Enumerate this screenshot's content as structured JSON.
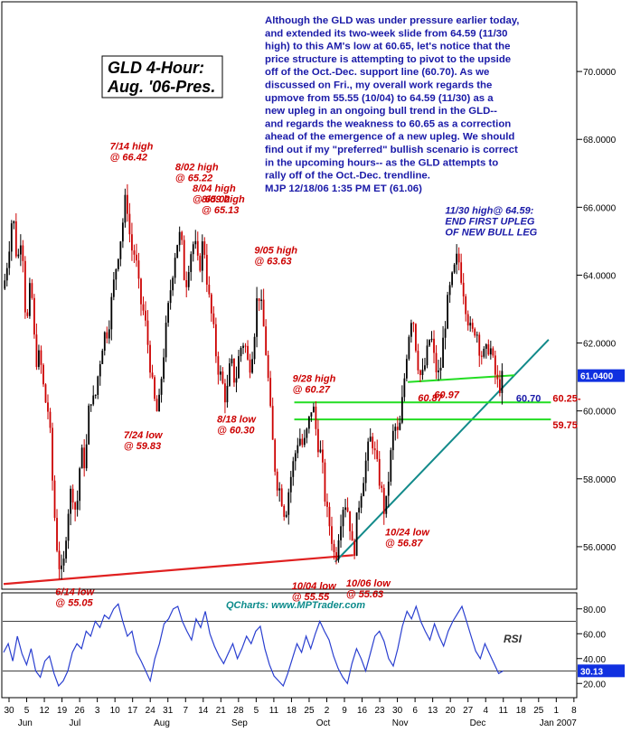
{
  "title_lines": [
    "GLD 4-Hour:",
    "Aug. '06-Pres."
  ],
  "commentary": [
    "Although the GLD was under pressure earlier today,",
    "and extended its two-week slide from 64.59 (11/30",
    "high) to this AM's low at 60.65, let's notice that the",
    "price structure is attempting to pivot to the upside",
    "off of the Oct.-Dec. support line (60.70). As we",
    "discussed on Fri., my overall work regards the",
    "upmove from 55.55 (10/04) to 64.59 (11/30) as a",
    "new upleg in an ongoing bull trend in the GLD--",
    "and regards the weakness to 60.65 as a correction",
    "ahead of the emergence of a new upleg. We should",
    "find out if my \"preferred\" bullish scenario is correct",
    "in the upcoming hours-- as the GLD attempts to",
    "rally off of the Oct.-Dec. trendline.",
    "MJP 12/18/06 1:35 PM ET   (61.06)"
  ],
  "credit": "QCharts: www.MPTrader.com",
  "rsi_label": "RSI",
  "colors": {
    "annotation": "#cc0000",
    "annotation_blue": "#1a1aa8",
    "support_line": "#e02020",
    "trendline": "#128a8a",
    "level_line": "#22dd22",
    "rsi_line": "#2a3fd0",
    "price_tag": "#1030e0",
    "rsi_tag": "#1030e0",
    "candle_up": "#000000",
    "candle_down": "#cc0000"
  },
  "chart_data": {
    "type": "candlestick",
    "symbol": "GLD",
    "interval": "4-Hour",
    "ylim": [
      54.8,
      72.0
    ],
    "y_ticks": [
      "70.0000",
      "68.0000",
      "66.0000",
      "64.0000",
      "62.0000",
      "60.0000",
      "58.0000",
      "56.0000"
    ],
    "last_price_tag": "61.0400",
    "x_ticks": [
      "30",
      "5",
      "12",
      "19",
      "26",
      "3",
      "10",
      "17",
      "24",
      "31",
      "7",
      "14",
      "21",
      "28",
      "5",
      "11",
      "18",
      "25",
      "2",
      "9",
      "16",
      "23",
      "30",
      "6",
      "13",
      "20",
      "27",
      "4",
      "11",
      "18",
      "25",
      "1",
      "8"
    ],
    "month_labels": [
      "Jun",
      "Jul",
      "Aug",
      "Sep",
      "Oct",
      "Nov",
      "Dec",
      "Jan 2007"
    ],
    "price_path": [
      [
        0,
        63.6
      ],
      [
        2,
        64.6
      ],
      [
        4,
        65.9
      ],
      [
        6,
        64.3
      ],
      [
        8,
        65.4
      ],
      [
        10,
        62.3
      ],
      [
        12,
        63.9
      ],
      [
        14,
        61.5
      ],
      [
        16,
        61.6
      ],
      [
        18,
        60.4
      ],
      [
        20,
        59.9
      ],
      [
        22,
        57.3
      ],
      [
        24,
        55.6
      ],
      [
        26,
        55.05
      ],
      [
        28,
        56.9
      ],
      [
        30,
        57.8
      ],
      [
        32,
        56.9
      ],
      [
        34,
        58.8
      ],
      [
        36,
        58.4
      ],
      [
        38,
        60.5
      ],
      [
        40,
        60.2
      ],
      [
        42,
        61.3
      ],
      [
        44,
        62.2
      ],
      [
        46,
        62.4
      ],
      [
        48,
        63.5
      ],
      [
        50,
        64.5
      ],
      [
        52,
        65.3
      ],
      [
        54,
        66.42
      ],
      [
        56,
        64.8
      ],
      [
        58,
        64.6
      ],
      [
        60,
        63.3
      ],
      [
        62,
        62.8
      ],
      [
        64,
        61.7
      ],
      [
        66,
        60.4
      ],
      [
        68,
        59.83
      ],
      [
        70,
        61.4
      ],
      [
        72,
        62.7
      ],
      [
        74,
        63.9
      ],
      [
        76,
        64.9
      ],
      [
        78,
        65.22
      ],
      [
        80,
        63.6
      ],
      [
        82,
        64.6
      ],
      [
        84,
        65.02
      ],
      [
        86,
        64.1
      ],
      [
        88,
        65.13
      ],
      [
        90,
        63.5
      ],
      [
        92,
        62.6
      ],
      [
        94,
        61.4
      ],
      [
        96,
        60.9
      ],
      [
        98,
        60.3
      ],
      [
        100,
        61.5
      ],
      [
        102,
        60.8
      ],
      [
        104,
        61.8
      ],
      [
        106,
        62.1
      ],
      [
        108,
        61.2
      ],
      [
        110,
        62.0
      ],
      [
        112,
        63.63
      ],
      [
        114,
        62.8
      ],
      [
        116,
        61.4
      ],
      [
        118,
        59.4
      ],
      [
        120,
        58.0
      ],
      [
        122,
        57.6
      ],
      [
        124,
        56.9
      ],
      [
        126,
        57.9
      ],
      [
        128,
        58.6
      ],
      [
        130,
        59.3
      ],
      [
        132,
        58.9
      ],
      [
        134,
        59.5
      ],
      [
        136,
        60.27
      ],
      [
        138,
        59.2
      ],
      [
        140,
        58.6
      ],
      [
        142,
        57.1
      ],
      [
        144,
        56.5
      ],
      [
        146,
        55.55
      ],
      [
        148,
        56.7
      ],
      [
        150,
        57.4
      ],
      [
        152,
        57.0
      ],
      [
        154,
        55.63
      ],
      [
        156,
        57.1
      ],
      [
        158,
        57.9
      ],
      [
        160,
        58.7
      ],
      [
        162,
        59.3
      ],
      [
        164,
        58.5
      ],
      [
        166,
        57.8
      ],
      [
        168,
        56.87
      ],
      [
        170,
        58.4
      ],
      [
        172,
        59.6
      ],
      [
        174,
        59.2
      ],
      [
        176,
        60.6
      ],
      [
        178,
        62.1
      ],
      [
        180,
        63.0
      ],
      [
        182,
        61.6
      ],
      [
        184,
        60.87
      ],
      [
        186,
        61.5
      ],
      [
        188,
        62.3
      ],
      [
        190,
        61.3
      ],
      [
        192,
        60.97
      ],
      [
        194,
        62.4
      ],
      [
        196,
        63.4
      ],
      [
        198,
        64.0
      ],
      [
        200,
        64.59
      ],
      [
        202,
        63.8
      ],
      [
        204,
        62.9
      ],
      [
        206,
        62.2
      ],
      [
        208,
        62.5
      ],
      [
        210,
        61.7
      ],
      [
        212,
        61.6
      ],
      [
        214,
        62.0
      ],
      [
        216,
        61.2
      ],
      [
        218,
        60.65
      ],
      [
        220,
        61.04
      ]
    ],
    "support_line": {
      "from": [
        0,
        54.9
      ],
      "to": [
        154,
        55.75
      ],
      "label": ""
    },
    "trendline": {
      "from": [
        146,
        55.55
      ],
      "to": [
        240,
        62.1
      ],
      "value_label": "60.70"
    },
    "level_lines": [
      {
        "value": 60.25,
        "label": "60.25-"
      },
      {
        "value": 59.75,
        "label": "59.75"
      }
    ],
    "short_level_line": {
      "from": [
        178,
        60.85
      ],
      "to": [
        225,
        61.05
      ]
    },
    "annotations": [
      {
        "text_lines": [
          "6/14 low",
          "@ 55.05"
        ],
        "at": [
          26,
          55.05
        ]
      },
      {
        "text_lines": [
          "7/14 high",
          "@ 66.42"
        ],
        "at": [
          54,
          66.42
        ]
      },
      {
        "text_lines": [
          "7/24 low",
          "@ 59.83"
        ],
        "at": [
          68,
          59.83
        ]
      },
      {
        "text_lines": [
          "8/02 high",
          "@ 65.22"
        ],
        "at": [
          78,
          65.22
        ]
      },
      {
        "text_lines": [
          "8/04 high",
          "@ 65.02"
        ],
        "at": [
          84,
          65.02
        ]
      },
      {
        "text_lines": [
          "8/09 high",
          "@ 65.13"
        ],
        "at": [
          88,
          65.13
        ]
      },
      {
        "text_lines": [
          "8/18 low",
          "@ 60.30"
        ],
        "at": [
          98,
          60.3
        ]
      },
      {
        "text_lines": [
          "9/05 high",
          "@ 63.63"
        ],
        "at": [
          112,
          63.63
        ]
      },
      {
        "text_lines": [
          "9/28 high",
          "@ 60.27"
        ],
        "at": [
          136,
          60.27
        ]
      },
      {
        "text_lines": [
          "10/04 low",
          "@ 55.55"
        ],
        "at": [
          146,
          55.55
        ]
      },
      {
        "text_lines": [
          "10/06 low",
          "@ 55.63"
        ],
        "at": [
          154,
          55.63
        ]
      },
      {
        "text_lines": [
          "10/24 low",
          "@ 56.87"
        ],
        "at": [
          168,
          56.87
        ]
      },
      {
        "text_lines": [
          "60.87"
        ],
        "at": [
          184,
          60.87
        ]
      },
      {
        "text_lines": [
          "60.97"
        ],
        "at": [
          192,
          60.97
        ]
      },
      {
        "text_lines": [
          "11/30 high@ 64.59:",
          "END FIRST UPLEG",
          "OF NEW BULL LEG"
        ],
        "at": [
          200,
          64.59
        ]
      }
    ],
    "rsi": {
      "ylim": [
        10,
        90
      ],
      "y_ticks": [
        "80.00",
        "60.00",
        "40.00",
        "20.00"
      ],
      "level_lines": [
        70,
        30
      ],
      "last_value_tag": "30.13",
      "values": [
        45,
        52,
        38,
        58,
        44,
        35,
        48,
        30,
        25,
        38,
        42,
        28,
        18,
        22,
        30,
        45,
        52,
        48,
        62,
        58,
        70,
        65,
        75,
        72,
        80,
        84,
        70,
        58,
        62,
        45,
        38,
        30,
        22,
        40,
        52,
        68,
        72,
        80,
        82,
        70,
        62,
        55,
        72,
        65,
        78,
        60,
        50,
        42,
        36,
        44,
        52,
        40,
        48,
        58,
        52,
        62,
        66,
        48,
        35,
        26,
        22,
        18,
        28,
        40,
        52,
        45,
        58,
        48,
        60,
        70,
        62,
        55,
        42,
        32,
        25,
        20,
        36,
        48,
        40,
        30,
        44,
        58,
        62,
        54,
        40,
        34,
        48,
        66,
        78,
        72,
        82,
        70,
        62,
        55,
        68,
        58,
        50,
        62,
        70,
        76,
        82,
        70,
        58,
        46,
        40,
        52,
        44,
        36,
        28,
        30.13
      ]
    }
  }
}
